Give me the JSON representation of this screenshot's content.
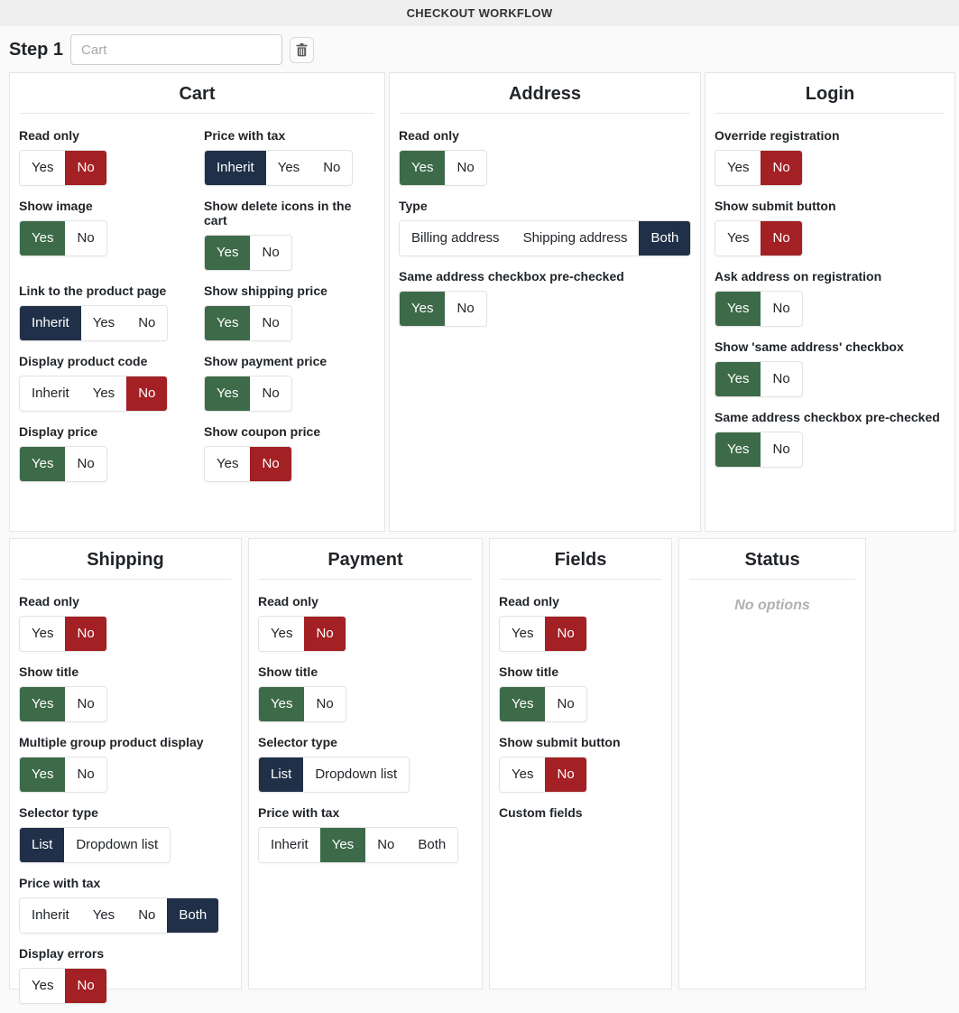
{
  "header": {
    "title": "CHECKOUT WORKFLOW"
  },
  "step": {
    "label": "Step 1",
    "name_input": {
      "value": "",
      "placeholder": "Cart"
    },
    "delete_icon": "trash-icon"
  },
  "colors": {
    "yes_selected": "#3d6a49",
    "no_selected": "#a32024",
    "neutral_selected": "#1f3048"
  },
  "empty_panel_text": "No options",
  "rows": [
    {
      "panels": [
        {
          "key": "cart",
          "title": "Cart",
          "two_col": true,
          "options": [
            {
              "label": "Read only",
              "choices": [
                "Yes",
                "No"
              ],
              "selected": "No"
            },
            {
              "label": "Price with tax",
              "choices": [
                "Inherit",
                "Yes",
                "No"
              ],
              "selected": "Inherit"
            },
            {
              "label": "Show image",
              "choices": [
                "Yes",
                "No"
              ],
              "selected": "Yes"
            },
            {
              "label": "Show delete icons in the cart",
              "choices": [
                "Yes",
                "No"
              ],
              "selected": "Yes"
            },
            {
              "label": "Link to the product page",
              "choices": [
                "Inherit",
                "Yes",
                "No"
              ],
              "selected": "Inherit"
            },
            {
              "label": "Show shipping price",
              "choices": [
                "Yes",
                "No"
              ],
              "selected": "Yes"
            },
            {
              "label": "Display product code",
              "choices": [
                "Inherit",
                "Yes",
                "No"
              ],
              "selected": "No"
            },
            {
              "label": "Show payment price",
              "choices": [
                "Yes",
                "No"
              ],
              "selected": "Yes"
            },
            {
              "label": "Display price",
              "choices": [
                "Yes",
                "No"
              ],
              "selected": "Yes"
            },
            {
              "label": "Show coupon price",
              "choices": [
                "Yes",
                "No"
              ],
              "selected": "No"
            }
          ]
        },
        {
          "key": "address",
          "title": "Address",
          "options": [
            {
              "label": "Read only",
              "choices": [
                "Yes",
                "No"
              ],
              "selected": "Yes"
            },
            {
              "label": "Type",
              "choices": [
                "Billing address",
                "Shipping address",
                "Both"
              ],
              "selected": "Both"
            },
            {
              "label": "Same address checkbox pre-checked",
              "choices": [
                "Yes",
                "No"
              ],
              "selected": "Yes"
            }
          ]
        },
        {
          "key": "login",
          "title": "Login",
          "options": [
            {
              "label": "Override registration",
              "choices": [
                "Yes",
                "No"
              ],
              "selected": "No"
            },
            {
              "label": "Show submit button",
              "choices": [
                "Yes",
                "No"
              ],
              "selected": "No"
            },
            {
              "label": "Ask address on registration",
              "choices": [
                "Yes",
                "No"
              ],
              "selected": "Yes"
            },
            {
              "label": "Show 'same address' checkbox",
              "choices": [
                "Yes",
                "No"
              ],
              "selected": "Yes"
            },
            {
              "label": "Same address checkbox pre-checked",
              "choices": [
                "Yes",
                "No"
              ],
              "selected": "Yes"
            }
          ]
        }
      ]
    },
    {
      "panels": [
        {
          "key": "shipping",
          "title": "Shipping",
          "options": [
            {
              "label": "Read only",
              "choices": [
                "Yes",
                "No"
              ],
              "selected": "No"
            },
            {
              "label": "Show title",
              "choices": [
                "Yes",
                "No"
              ],
              "selected": "Yes"
            },
            {
              "label": "Multiple group product display",
              "choices": [
                "Yes",
                "No"
              ],
              "selected": "Yes"
            },
            {
              "label": "Selector type",
              "choices": [
                "List",
                "Dropdown list"
              ],
              "selected": "List"
            },
            {
              "label": "Price with tax",
              "choices": [
                "Inherit",
                "Yes",
                "No",
                "Both"
              ],
              "selected": "Both"
            },
            {
              "label": "Display errors",
              "choices": [
                "Yes",
                "No"
              ],
              "selected": "No"
            }
          ]
        },
        {
          "key": "payment",
          "title": "Payment",
          "options": [
            {
              "label": "Read only",
              "choices": [
                "Yes",
                "No"
              ],
              "selected": "No"
            },
            {
              "label": "Show title",
              "choices": [
                "Yes",
                "No"
              ],
              "selected": "Yes"
            },
            {
              "label": "Selector type",
              "choices": [
                "List",
                "Dropdown list"
              ],
              "selected": "List"
            },
            {
              "label": "Price with tax",
              "choices": [
                "Inherit",
                "Yes",
                "No",
                "Both"
              ],
              "selected": "Yes"
            }
          ]
        },
        {
          "key": "fields",
          "title": "Fields",
          "options": [
            {
              "label": "Read only",
              "choices": [
                "Yes",
                "No"
              ],
              "selected": "No"
            },
            {
              "label": "Show title",
              "choices": [
                "Yes",
                "No"
              ],
              "selected": "Yes"
            },
            {
              "label": "Show submit button",
              "choices": [
                "Yes",
                "No"
              ],
              "selected": "No"
            },
            {
              "label": "Custom fields",
              "choices": [],
              "selected": null
            }
          ]
        },
        {
          "key": "status",
          "title": "Status",
          "options": []
        }
      ]
    }
  ]
}
